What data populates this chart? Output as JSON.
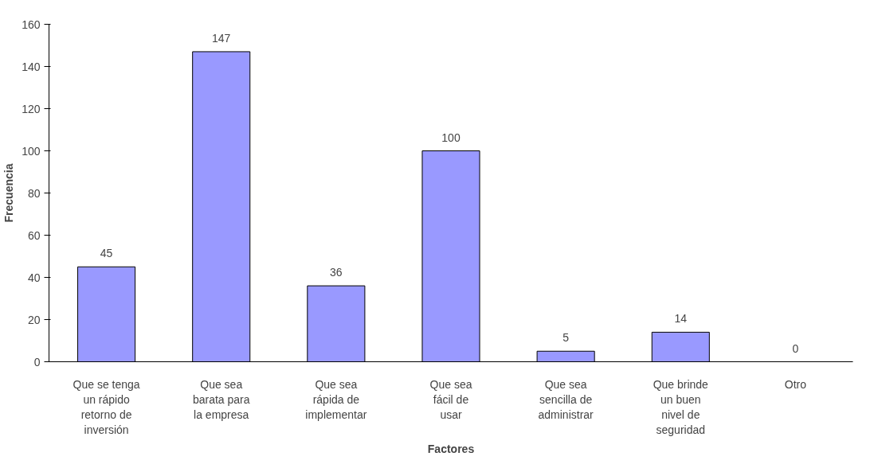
{
  "chart_data": {
    "type": "bar",
    "xlabel": "Factores",
    "ylabel": "Frecuencia",
    "categories": [
      "Que se tenga un rápido retorno de inversión",
      "Que sea barata para la empresa",
      "Que sea rápida de implementar",
      "Que sea fácil de usar",
      "Que sea sencilla de administrar",
      "Que brinde un buen nivel de seguridad",
      "Otro"
    ],
    "values": [
      45,
      147,
      36,
      100,
      5,
      14,
      0
    ],
    "color": "#9999ff",
    "ylim": [
      0,
      160
    ],
    "yticks": [
      0,
      20,
      40,
      60,
      80,
      100,
      120,
      140,
      160
    ],
    "grid": false,
    "data_labels": true
  }
}
